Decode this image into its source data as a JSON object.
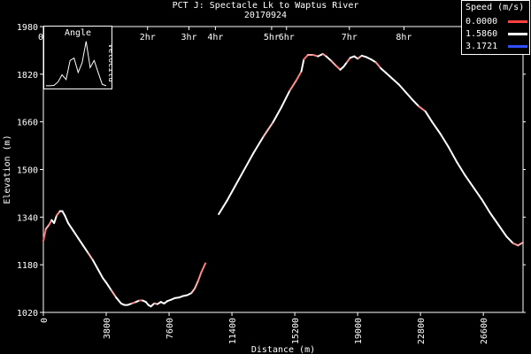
{
  "chart_data": {
    "type": "line",
    "title": "PCT J:  Spectacle Lk to Waptus River",
    "subtitle": "20170924",
    "xlabel": "Distance (m)",
    "ylabel": "Elevation (m)",
    "xlim": [
      0,
      29000
    ],
    "ylim": [
      1020,
      1980
    ],
    "x_ticks": [
      0,
      3800,
      7600,
      11400,
      15200,
      19000,
      22800,
      26600
    ],
    "y_ticks": [
      1020,
      1180,
      1340,
      1500,
      1660,
      1820,
      1980
    ],
    "time_ticks": [
      {
        "label": "0H",
        "x": 0
      },
      {
        "label": "2hr",
        "x": 6300
      },
      {
        "label": "3hr",
        "x": 8800
      },
      {
        "label": "4hr",
        "x": 10400
      },
      {
        "label": "5hr",
        "x": 13800
      },
      {
        "label": "6hr",
        "x": 14700
      },
      {
        "label": "7hr",
        "x": 18500
      },
      {
        "label": "8hr",
        "x": 21800
      }
    ],
    "legend": {
      "title": "Speed (m/s)",
      "placement": "top-right",
      "entries": [
        {
          "label": "0.0000",
          "color": "#ff4040"
        },
        {
          "label": "1.5860",
          "color": "#ffffff"
        },
        {
          "label": "3.1721",
          "color": "#3050ff"
        }
      ]
    },
    "inset": {
      "title": "Angle",
      "ylabel": "Velocitu",
      "y_values": [
        0.02,
        0.02,
        0.03,
        0.1,
        0.25,
        0.15,
        0.55,
        0.6,
        0.3,
        0.5,
        0.95,
        0.4,
        0.55,
        0.3,
        0.05,
        0.02
      ]
    },
    "series": [
      {
        "segments": [
          {
            "points": [
              [
                0,
                1260
              ],
              [
                150,
                1300
              ],
              [
                350,
                1315
              ],
              [
                500,
                1330
              ],
              [
                650,
                1320
              ],
              [
                800,
                1345
              ],
              [
                1000,
                1360
              ],
              [
                1150,
                1360
              ],
              [
                1300,
                1345
              ],
              [
                1500,
                1320
              ],
              [
                1800,
                1295
              ],
              [
                2100,
                1270
              ],
              [
                2400,
                1245
              ],
              [
                2700,
                1220
              ],
              [
                3000,
                1195
              ],
              [
                3300,
                1165
              ],
              [
                3600,
                1135
              ],
              [
                3800,
                1120
              ],
              [
                4100,
                1095
              ],
              [
                4400,
                1070
              ],
              [
                4700,
                1050
              ],
              [
                4900,
                1045
              ],
              [
                5100,
                1045
              ],
              [
                5350,
                1050
              ],
              [
                5600,
                1055
              ],
              [
                5800,
                1060
              ],
              [
                6000,
                1060
              ],
              [
                6200,
                1055
              ],
              [
                6350,
                1045
              ],
              [
                6500,
                1040
              ],
              [
                6700,
                1050
              ],
              [
                6900,
                1048
              ],
              [
                7100,
                1055
              ],
              [
                7300,
                1050
              ],
              [
                7500,
                1058
              ],
              [
                7700,
                1062
              ],
              [
                7950,
                1068
              ],
              [
                8200,
                1070
              ],
              [
                8450,
                1075
              ],
              [
                8700,
                1078
              ],
              [
                8950,
                1085
              ],
              [
                9150,
                1100
              ],
              [
                9350,
                1125
              ],
              [
                9550,
                1155
              ],
              [
                9800,
                1185
              ]
            ],
            "stroke_colors": [
              "#ff7070",
              "#ffb0b0",
              "#ff8080",
              "#ffffff",
              "#ffffff",
              "#ff9090",
              "#ffffff",
              "#ffffff",
              "#ffffff",
              "#ffffff",
              "#ffffff",
              "#ffffff",
              "#ffffff",
              "#ffc0c0",
              "#ffffff",
              "#ffffff",
              "#ffffff",
              "#ffffff",
              "#ffb0b0",
              "#ffffff",
              "#ffffff",
              "#ffffff",
              "#ffffff",
              "#ff9090",
              "#ffffff",
              "#ff7070",
              "#ffffff",
              "#ffffff",
              "#ffffff",
              "#ffffff",
              "#ffb0b0",
              "#ffffff",
              "#ffffff",
              "#ffffff",
              "#ffffff",
              "#ffffff",
              "#ffffff",
              "#ffffff",
              "#ffffff",
              "#ffffff",
              "#ffc0c0",
              "#ffb0b0",
              "#ff9090",
              "#ff8080"
            ]
          },
          {
            "points": [
              [
                10600,
                1350
              ],
              [
                11100,
                1395
              ],
              [
                11600,
                1445
              ],
              [
                12100,
                1495
              ],
              [
                12700,
                1555
              ],
              [
                13300,
                1610
              ],
              [
                13900,
                1660
              ],
              [
                14400,
                1710
              ],
              [
                14900,
                1765
              ],
              [
                15300,
                1800
              ],
              [
                15600,
                1830
              ],
              [
                15750,
                1870
              ],
              [
                16000,
                1885
              ],
              [
                16300,
                1885
              ],
              [
                16600,
                1880
              ],
              [
                16900,
                1888
              ],
              [
                17100,
                1880
              ],
              [
                17400,
                1865
              ],
              [
                17700,
                1848
              ],
              [
                17950,
                1835
              ],
              [
                18150,
                1845
              ],
              [
                18350,
                1860
              ],
              [
                18550,
                1875
              ],
              [
                18800,
                1880
              ],
              [
                19000,
                1872
              ],
              [
                19250,
                1882
              ],
              [
                19500,
                1878
              ],
              [
                19800,
                1870
              ],
              [
                20100,
                1860
              ],
              [
                20400,
                1840
              ],
              [
                20700,
                1825
              ],
              [
                21100,
                1805
              ],
              [
                21500,
                1785
              ],
              [
                21900,
                1760
              ],
              [
                22300,
                1735
              ],
              [
                22700,
                1712
              ],
              [
                23100,
                1695
              ],
              [
                23500,
                1660
              ],
              [
                24000,
                1620
              ],
              [
                24500,
                1575
              ],
              [
                25000,
                1525
              ],
              [
                25500,
                1480
              ],
              [
                26000,
                1440
              ],
              [
                26500,
                1400
              ],
              [
                27000,
                1355
              ],
              [
                27500,
                1315
              ],
              [
                28000,
                1275
              ],
              [
                28400,
                1252
              ],
              [
                28700,
                1245
              ],
              [
                29000,
                1255
              ]
            ],
            "stroke_colors": [
              "#ffffff",
              "#ffffff",
              "#ffffff",
              "#ffffff",
              "#ffffff",
              "#ffc0c0",
              "#ffffff",
              "#ffffff",
              "#ff9090",
              "#ff8080",
              "#ffffff",
              "#ff7070",
              "#ffb0b0",
              "#ff8080",
              "#ffffff",
              "#ff9090",
              "#ffffff",
              "#ffb0b0",
              "#ff8080",
              "#ffffff",
              "#ffffff",
              "#ff9090",
              "#ffffff",
              "#ffffff",
              "#ffb0b0",
              "#ffffff",
              "#ffffff",
              "#ffffff",
              "#ff9090",
              "#ffffff",
              "#ffffff",
              "#ffffff",
              "#ffffff",
              "#ffffff",
              "#ffffff",
              "#ff9090",
              "#ffffff",
              "#ffffff",
              "#ffffff",
              "#ffffff",
              "#ffffff",
              "#ffffff",
              "#ffffff",
              "#ffffff",
              "#ffffff",
              "#ffffff",
              "#ffffff",
              "#ff9090",
              "#ffb0b0"
            ]
          }
        ]
      }
    ]
  }
}
